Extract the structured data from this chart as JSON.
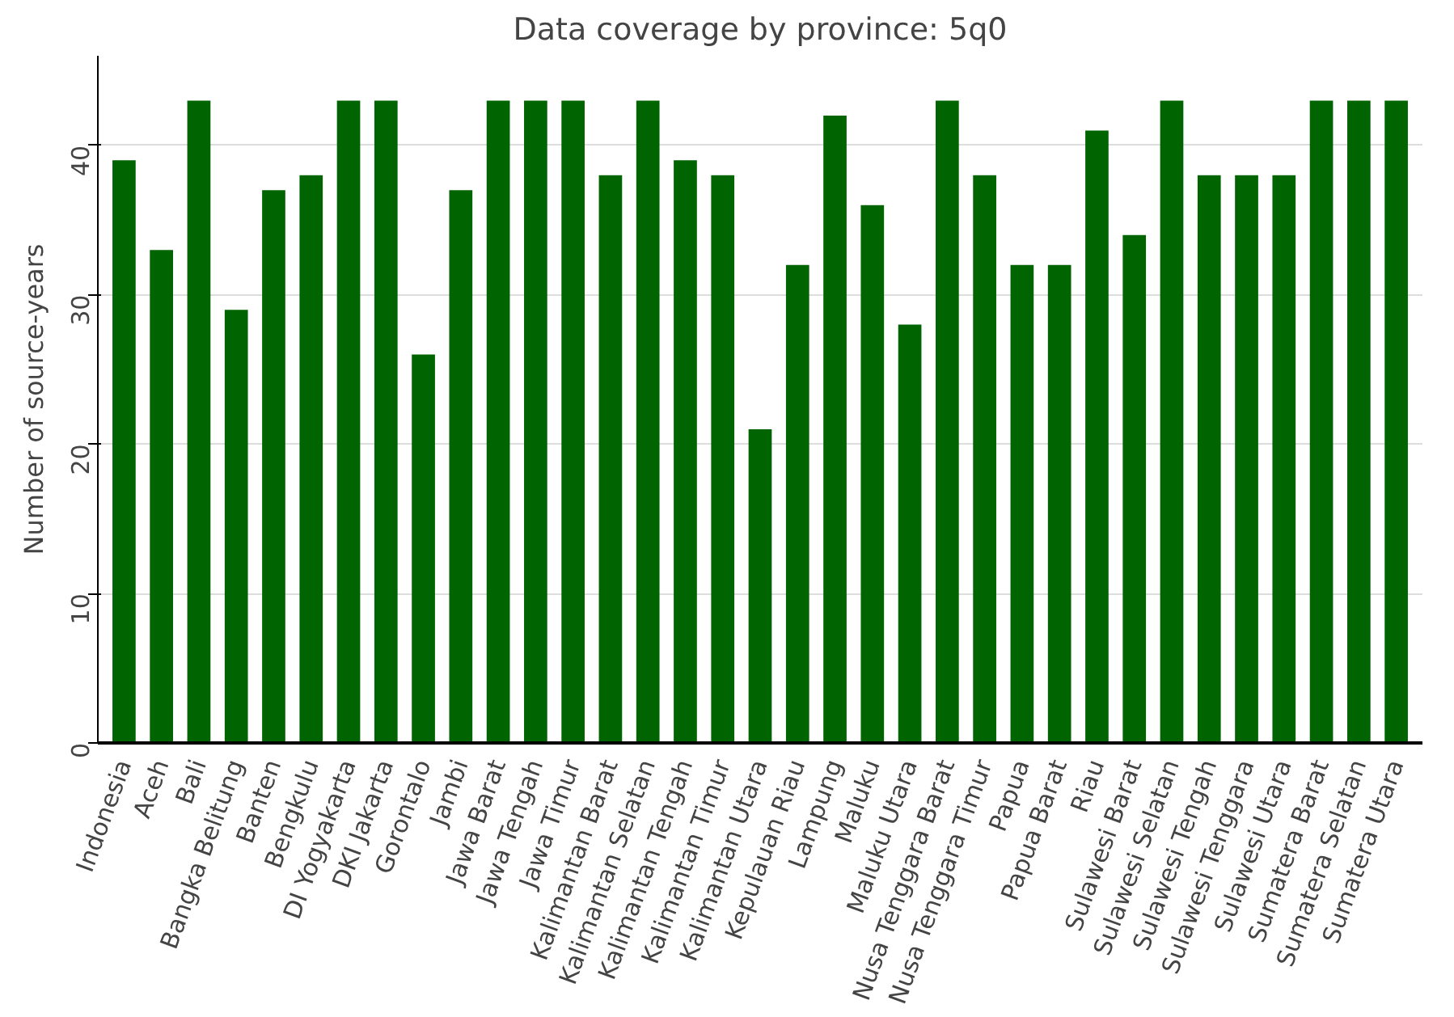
{
  "chart_data": {
    "type": "bar",
    "title": "Data coverage by province: 5q0",
    "ylabel": "Number of source-years",
    "categories": [
      "Indonesia",
      "Aceh",
      "Bali",
      "Bangka Belitung",
      "Banten",
      "Bengkulu",
      "DI Yogyakarta",
      "DKI Jakarta",
      "Gorontalo",
      "Jambi",
      "Jawa Barat",
      "Jawa Tengah",
      "Jawa Timur",
      "Kalimantan Barat",
      "Kalimantan Selatan",
      "Kalimantan Tengah",
      "Kalimantan Timur",
      "Kalimantan Utara",
      "Kepulauan Riau",
      "Lampung",
      "Maluku",
      "Maluku Utara",
      "Nusa Tenggara Barat",
      "Nusa Tenggara Timur",
      "Papua",
      "Papua Barat",
      "Riau",
      "Sulawesi Barat",
      "Sulawesi Selatan",
      "Sulawesi Tengah",
      "Sulawesi Tenggara",
      "Sulawesi Utara",
      "Sumatera Barat",
      "Sumatera Selatan",
      "Sumatera Utara"
    ],
    "values": [
      39,
      33,
      43,
      29,
      37,
      38,
      43,
      43,
      26,
      37,
      43,
      43,
      43,
      38,
      43,
      39,
      38,
      21,
      32,
      42,
      36,
      28,
      43,
      38,
      32,
      32,
      41,
      34,
      43,
      38,
      38,
      38,
      43,
      43,
      43
    ],
    "color": "#006400",
    "ylim": [
      0,
      46
    ],
    "yticks": [
      0,
      10,
      20,
      30,
      40
    ],
    "grid": "y"
  }
}
